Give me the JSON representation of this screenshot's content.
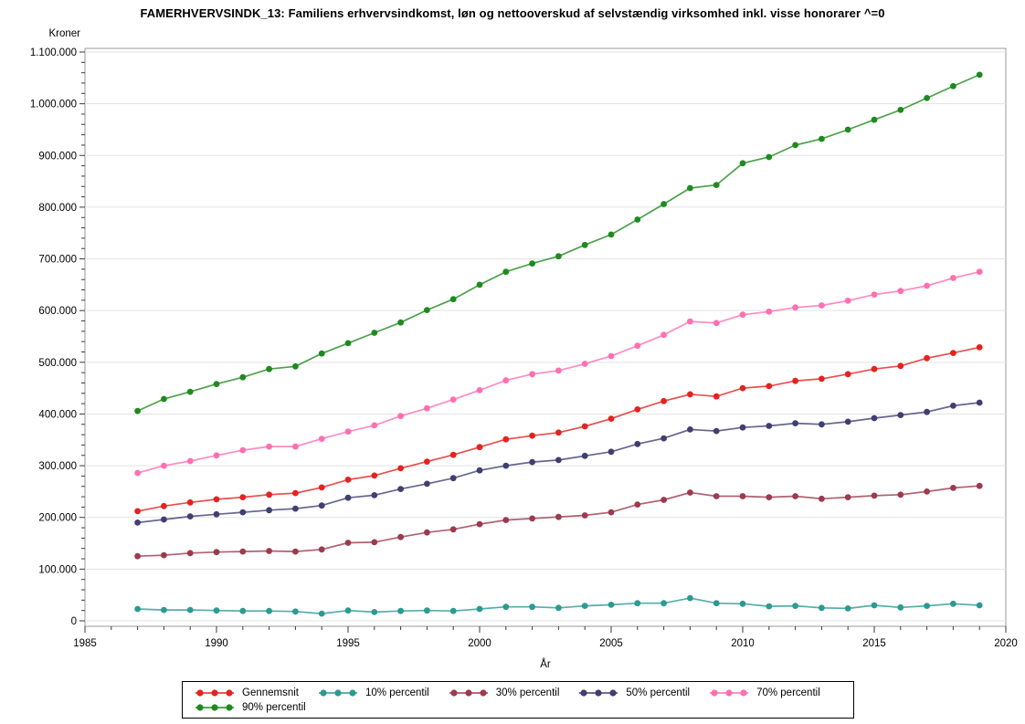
{
  "title": "FAMERHVERVSINDK_13: Familiens erhvervsindkomst, løn og nettooverskud af selvstændig virksomhed inkl. visse honorarer ^=0",
  "chart_data": {
    "type": "line",
    "marker": "circle",
    "grid": "horizontal",
    "legend_position": "bottom",
    "xlabel": "År",
    "ylabel": "Kroner",
    "xlim": [
      1985,
      2020
    ],
    "ylim": [
      0,
      1100000
    ],
    "x_tick_values": [
      1985,
      1990,
      1995,
      2000,
      2005,
      2010,
      2015,
      2020
    ],
    "x_tick_labels": [
      "1985",
      "1990",
      "1995",
      "2000",
      "2005",
      "2010",
      "2015",
      "2020"
    ],
    "y_tick_values": [
      0,
      100000,
      200000,
      300000,
      400000,
      500000,
      600000,
      700000,
      800000,
      900000,
      1000000,
      1100000
    ],
    "y_tick_labels": [
      "0",
      "100.000",
      "200.000",
      "300.000",
      "400.000",
      "500.000",
      "600.000",
      "700.000",
      "800.000",
      "900.000",
      "1.000.000",
      "1.100.000"
    ],
    "x": [
      1987,
      1988,
      1989,
      1990,
      1991,
      1992,
      1993,
      1994,
      1995,
      1996,
      1997,
      1998,
      1999,
      2000,
      2001,
      2002,
      2003,
      2004,
      2005,
      2006,
      2007,
      2008,
      2009,
      2010,
      2011,
      2012,
      2013,
      2014,
      2015,
      2016,
      2017,
      2018,
      2019
    ],
    "series": [
      {
        "name": "Gennemsnit",
        "slug": "gennemsnit",
        "color": "#e42320",
        "values": [
          212000,
          222000,
          229000,
          235000,
          239000,
          244000,
          247000,
          258000,
          273000,
          281000,
          295000,
          308000,
          321000,
          336000,
          351000,
          358000,
          364000,
          376000,
          391000,
          409000,
          425000,
          438000,
          434000,
          450000,
          454000,
          464000,
          468000,
          477000,
          487000,
          493000,
          508000,
          518000,
          529000
        ]
      },
      {
        "name": "10% percentil",
        "slug": "p10",
        "color": "#2b9a92",
        "values": [
          23000,
          21000,
          21000,
          20000,
          19000,
          19000,
          18000,
          14000,
          20000,
          17000,
          19000,
          20000,
          19000,
          23000,
          27000,
          27000,
          25000,
          29000,
          31000,
          34000,
          34000,
          44000,
          34000,
          33000,
          28000,
          29000,
          25000,
          24000,
          30000,
          26000,
          29000,
          33000,
          30000
        ]
      },
      {
        "name": "30% percentil",
        "slug": "p30",
        "color": "#9d3a4e",
        "values": [
          125000,
          127000,
          131000,
          133000,
          134000,
          135000,
          134000,
          138000,
          151000,
          152000,
          162000,
          171000,
          177000,
          187000,
          195000,
          198000,
          201000,
          204000,
          210000,
          225000,
          234000,
          248000,
          241000,
          241000,
          239000,
          241000,
          236000,
          239000,
          242000,
          244000,
          250000,
          257000,
          261000
        ]
      },
      {
        "name": "50% percentil",
        "slug": "p50",
        "color": "#413e72",
        "values": [
          190000,
          196000,
          202000,
          206000,
          210000,
          214000,
          217000,
          223000,
          238000,
          243000,
          255000,
          265000,
          276000,
          291000,
          300000,
          307000,
          311000,
          319000,
          327000,
          342000,
          353000,
          370000,
          367000,
          374000,
          377000,
          382000,
          380000,
          385000,
          392000,
          398000,
          404000,
          416000,
          422000
        ]
      },
      {
        "name": "70% percentil",
        "slug": "p70",
        "color": "#ff6fb1",
        "values": [
          286000,
          300000,
          309000,
          320000,
          330000,
          337000,
          337000,
          352000,
          366000,
          378000,
          396000,
          411000,
          428000,
          446000,
          465000,
          477000,
          484000,
          497000,
          512000,
          532000,
          553000,
          579000,
          576000,
          592000,
          598000,
          606000,
          610000,
          619000,
          631000,
          638000,
          648000,
          663000,
          675000
        ]
      },
      {
        "name": "90% percentil",
        "slug": "p90",
        "color": "#1f8a1f",
        "values": [
          406000,
          429000,
          443000,
          458000,
          471000,
          487000,
          492000,
          517000,
          537000,
          557000,
          577000,
          601000,
          622000,
          650000,
          675000,
          691000,
          705000,
          727000,
          747000,
          776000,
          806000,
          837000,
          843000,
          885000,
          897000,
          920000,
          932000,
          950000,
          969000,
          988000,
          1011000,
          1034000,
          1056000
        ]
      }
    ]
  }
}
